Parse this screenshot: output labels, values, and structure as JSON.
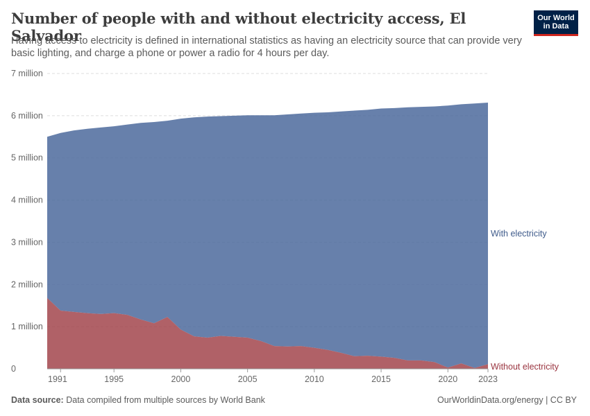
{
  "header": {
    "title": "Number of people with and without electricity access, El Salvador",
    "subtitle": "Having access to electricity is defined in international statistics as having an electricity source that can provide very basic lighting, and charge a phone or power a radio for 4 hours per day."
  },
  "logo": {
    "line1": "Our World",
    "line2": "in Data"
  },
  "footer": {
    "source_label": "Data source:",
    "source_text": "Data compiled from multiple sources by World Bank",
    "url_text": "OurWorldinData.org/energy | CC BY"
  },
  "colors": {
    "with_electricity": "#4c6a9c",
    "without_electricity": "#a2454c",
    "with_label": "#3f5b8b",
    "without_label": "#9a3540",
    "grid": "#dddddd",
    "axis_text": "#666666"
  },
  "chart_data": {
    "type": "area",
    "stacked": true,
    "x": [
      1990,
      1991,
      1992,
      1993,
      1994,
      1995,
      1996,
      1997,
      1998,
      1999,
      2000,
      2001,
      2002,
      2003,
      2004,
      2005,
      2006,
      2007,
      2008,
      2009,
      2010,
      2011,
      2012,
      2013,
      2014,
      2015,
      2016,
      2017,
      2018,
      2019,
      2020,
      2021,
      2022,
      2023
    ],
    "series": [
      {
        "name": "Without electricity",
        "color": "#a2454c",
        "values": [
          1680000,
          1380000,
          1350000,
          1320000,
          1300000,
          1320000,
          1280000,
          1170000,
          1080000,
          1230000,
          930000,
          770000,
          740000,
          780000,
          760000,
          740000,
          660000,
          540000,
          530000,
          540000,
          500000,
          450000,
          380000,
          300000,
          310000,
          290000,
          260000,
          200000,
          200000,
          160000,
          30000,
          130000,
          20000,
          110000
        ]
      },
      {
        "name": "With electricity",
        "color": "#4c6a9c",
        "values": [
          3820000,
          4210000,
          4300000,
          4370000,
          4420000,
          4430000,
          4510000,
          4660000,
          4770000,
          4650000,
          5000000,
          5190000,
          5240000,
          5210000,
          5240000,
          5270000,
          5350000,
          5470000,
          5500000,
          5510000,
          5570000,
          5630000,
          5720000,
          5820000,
          5830000,
          5880000,
          5920000,
          6000000,
          6010000,
          6060000,
          6210000,
          6140000,
          6270000,
          6200000
        ]
      }
    ],
    "y_axis": {
      "min": 0,
      "max": 7000000,
      "ticks": [
        0,
        1000000,
        2000000,
        3000000,
        4000000,
        5000000,
        6000000,
        7000000
      ],
      "tick_labels": [
        "0",
        "1 million",
        "2 million",
        "3 million",
        "4 million",
        "5 million",
        "6 million",
        "7 million"
      ]
    },
    "x_axis": {
      "ticks": [
        1991,
        1995,
        2000,
        2005,
        2010,
        2015,
        2020,
        2023
      ],
      "tick_labels": [
        "1991",
        "1995",
        "2000",
        "2005",
        "2010",
        "2015",
        "2020",
        "2023"
      ]
    },
    "grid": true,
    "legend": "inline-right"
  }
}
